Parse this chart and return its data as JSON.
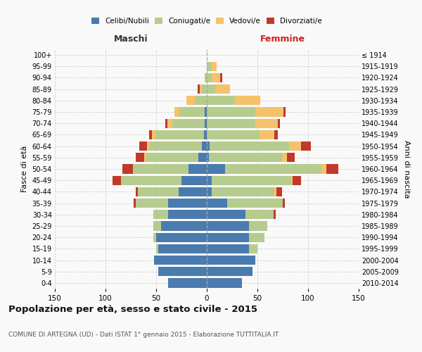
{
  "age_groups": [
    "0-4",
    "5-9",
    "10-14",
    "15-19",
    "20-24",
    "25-29",
    "30-34",
    "35-39",
    "40-44",
    "45-49",
    "50-54",
    "55-59",
    "60-64",
    "65-69",
    "70-74",
    "75-79",
    "80-84",
    "85-89",
    "90-94",
    "95-99",
    "100+"
  ],
  "birth_years": [
    "2010-2014",
    "2005-2009",
    "2000-2004",
    "1995-1999",
    "1990-1994",
    "1985-1989",
    "1980-1984",
    "1975-1979",
    "1970-1974",
    "1965-1969",
    "1960-1964",
    "1955-1959",
    "1950-1954",
    "1945-1949",
    "1940-1944",
    "1935-1939",
    "1930-1934",
    "1925-1929",
    "1920-1924",
    "1915-1919",
    "≤ 1914"
  ],
  "male": {
    "celibi": [
      38,
      48,
      52,
      48,
      50,
      45,
      38,
      38,
      28,
      25,
      18,
      8,
      5,
      3,
      2,
      2,
      0,
      0,
      0,
      0,
      0
    ],
    "coniugati": [
      0,
      0,
      0,
      2,
      3,
      8,
      15,
      32,
      40,
      60,
      55,
      52,
      52,
      48,
      32,
      25,
      12,
      5,
      2,
      0,
      0
    ],
    "vedovi": [
      0,
      0,
      0,
      0,
      0,
      0,
      0,
      0,
      0,
      0,
      0,
      2,
      2,
      3,
      5,
      5,
      8,
      2,
      0,
      0,
      0
    ],
    "divorziati": [
      0,
      0,
      0,
      0,
      0,
      0,
      0,
      2,
      2,
      8,
      10,
      8,
      8,
      3,
      2,
      0,
      0,
      2,
      0,
      0,
      0
    ]
  },
  "female": {
    "nubili": [
      35,
      45,
      48,
      42,
      42,
      42,
      38,
      20,
      5,
      5,
      18,
      2,
      3,
      0,
      0,
      0,
      0,
      0,
      0,
      0,
      0
    ],
    "coniugate": [
      0,
      0,
      0,
      8,
      15,
      18,
      28,
      55,
      62,
      78,
      95,
      72,
      78,
      52,
      48,
      48,
      28,
      8,
      5,
      5,
      0
    ],
    "vedove": [
      0,
      0,
      0,
      0,
      0,
      0,
      0,
      0,
      2,
      2,
      5,
      5,
      12,
      15,
      22,
      28,
      25,
      15,
      8,
      5,
      0
    ],
    "divorziate": [
      0,
      0,
      0,
      0,
      0,
      0,
      2,
      2,
      5,
      8,
      12,
      8,
      10,
      3,
      2,
      2,
      0,
      0,
      2,
      0,
      0
    ]
  },
  "colors": {
    "celibi": "#4a7bae",
    "coniugati": "#b5cc8e",
    "vedovi": "#f5c26b",
    "divorziati": "#c0392b"
  },
  "xlim": 150,
  "title": "Popolazione per età, sesso e stato civile - 2015",
  "subtitle": "COMUNE DI ARTEGNA (UD) - Dati ISTAT 1° gennaio 2015 - Elaborazione TUTTITALIA.IT",
  "ylabel_left": "Fasce di età",
  "ylabel_right": "Anni di nascita",
  "xlabel_left": "Maschi",
  "xlabel_right": "Femmine",
  "legend_labels": [
    "Celibi/Nubili",
    "Coniugati/e",
    "Vedovi/e",
    "Divorziati/e"
  ],
  "bg_color": "#f9f9f9"
}
